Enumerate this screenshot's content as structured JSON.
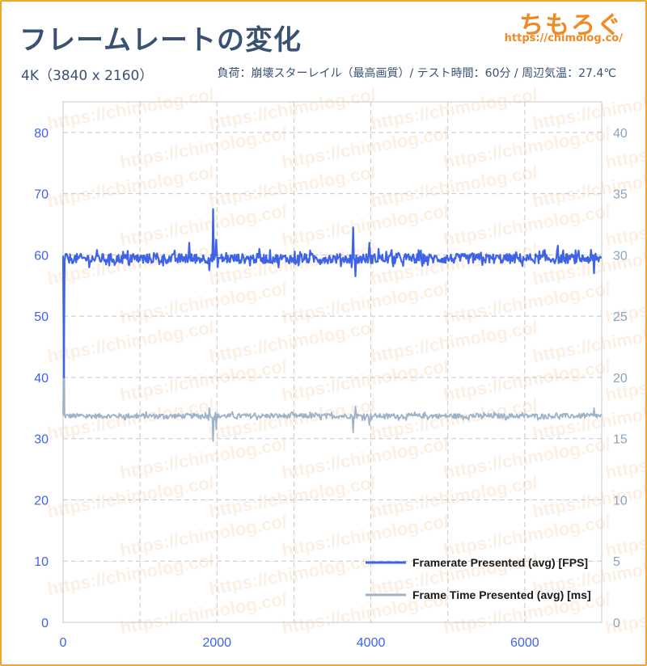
{
  "header": {
    "title": "フレームレートの変化",
    "resolution": "4K（3840 x 2160）",
    "conditions": "負荷：崩壊スターレイル（最高画質）/ テスト時間：60分 / 周辺気温：27.4℃"
  },
  "brand": {
    "name": "ちもろぐ",
    "url": "https://chimolog.co/"
  },
  "watermark": "https://chimolog.co/",
  "colors": {
    "fps": "#3f63e6",
    "frametime": "#9cb3c9",
    "grid": "#c8c8c8",
    "left_axis": "#3f63e6",
    "right_axis": "#8ba3bd"
  },
  "chart_data": {
    "type": "line",
    "x_ticks": [
      0,
      2000,
      4000,
      6000
    ],
    "xlim": [
      0,
      7000
    ],
    "y_left": {
      "ylim": [
        0,
        85
      ],
      "ticks": [
        0,
        10,
        20,
        30,
        40,
        50,
        60,
        70,
        80
      ]
    },
    "y_right": {
      "ylim": [
        0,
        42.5
      ],
      "ticks": [
        0,
        5,
        10,
        15,
        20,
        25,
        30,
        35,
        40
      ]
    },
    "legend_position": "bottom-right",
    "series": [
      {
        "name": "Framerate Presented (avg) [FPS]",
        "axis": "left",
        "baseline": 59.4,
        "noise": 0.8,
        "spikes": [
          [
            10,
            40
          ],
          [
            1640,
            62
          ],
          [
            1950,
            67.5
          ],
          [
            1990,
            62.5
          ],
          [
            2550,
            61
          ],
          [
            3770,
            64.5
          ],
          [
            3980,
            62
          ],
          [
            4100,
            61
          ],
          [
            6430,
            61.5
          ]
        ],
        "dips": [
          [
            1900,
            57.5
          ],
          [
            3800,
            56.5
          ],
          [
            6900,
            57
          ]
        ]
      },
      {
        "name": "Frame Time Presented (avg) [ms]",
        "axis": "right",
        "baseline": 16.85,
        "noise": 0.2,
        "spikes": [
          [
            10,
            26
          ],
          [
            1900,
            17.5
          ],
          [
            3800,
            17.6
          ],
          [
            6900,
            17.5
          ]
        ],
        "dips": [
          [
            1950,
            14.8
          ],
          [
            1990,
            15.8
          ],
          [
            3770,
            15.5
          ],
          [
            3980,
            16.1
          ]
        ]
      }
    ]
  },
  "legend": {
    "fps_label": "Framerate Presented (avg) [FPS]",
    "frametime_label": "Frame Time Presented (avg) [ms]"
  }
}
